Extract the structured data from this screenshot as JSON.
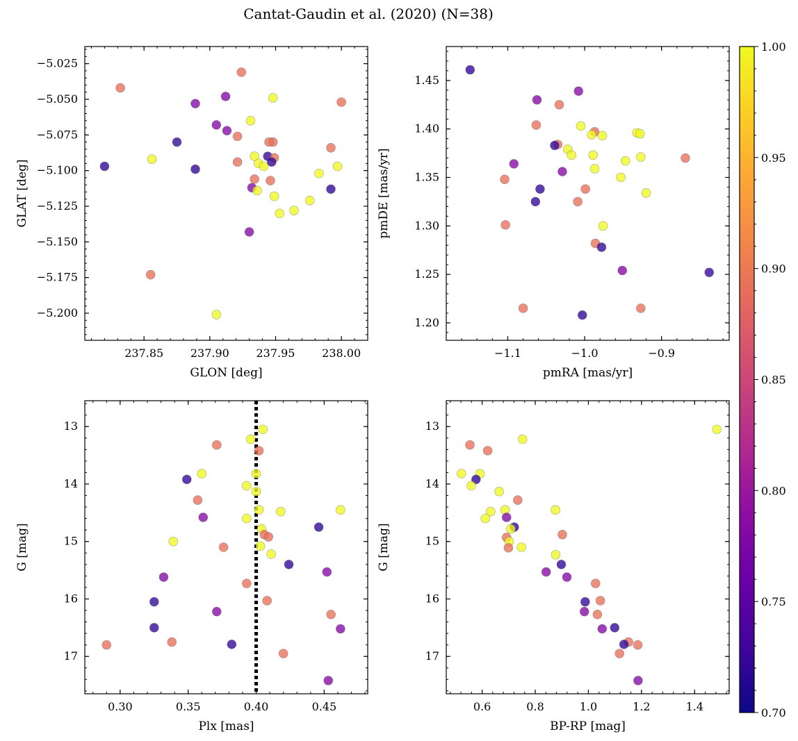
{
  "title": "Cantat-Gaudin et al. (2020) (N=38)",
  "colorbar": {
    "colormap": "plasma",
    "min": 0.7,
    "max": 1.0,
    "ticks": [
      "0.70",
      "0.75",
      "0.80",
      "0.85",
      "0.90",
      "0.95",
      "1.00"
    ]
  },
  "chart_data": [
    {
      "type": "scatter",
      "xlabel": "GLON [deg]",
      "ylabel": "GLAT [deg]",
      "xlim": [
        237.805,
        238.02
      ],
      "ylim": [
        -5.219,
        -5.013
      ],
      "xticks": [
        "237.85",
        "237.90",
        "237.95",
        "238.00"
      ],
      "yticks": [
        "−5.025",
        "−5.050",
        "−5.075",
        "−5.100",
        "−5.125",
        "−5.150",
        "−5.175",
        "−5.200"
      ],
      "points": [
        {
          "x": 237.924,
          "y": -5.031,
          "c": 0.89
        },
        {
          "x": 237.832,
          "y": -5.042,
          "c": 0.89
        },
        {
          "x": 237.912,
          "y": -5.048,
          "c": 0.78
        },
        {
          "x": 237.948,
          "y": -5.049,
          "c": 1.0
        },
        {
          "x": 238.0,
          "y": -5.052,
          "c": 0.89
        },
        {
          "x": 237.889,
          "y": -5.053,
          "c": 0.78
        },
        {
          "x": 237.931,
          "y": -5.065,
          "c": 1.0
        },
        {
          "x": 237.905,
          "y": -5.068,
          "c": 0.78
        },
        {
          "x": 237.913,
          "y": -5.072,
          "c": 0.78
        },
        {
          "x": 237.921,
          "y": -5.076,
          "c": 0.89
        },
        {
          "x": 237.875,
          "y": -5.08,
          "c": 0.72
        },
        {
          "x": 237.948,
          "y": -5.08,
          "c": 0.89
        },
        {
          "x": 237.945,
          "y": -5.08,
          "c": 0.89
        },
        {
          "x": 237.992,
          "y": -5.084,
          "c": 0.89
        },
        {
          "x": 237.944,
          "y": -5.09,
          "c": 0.72
        },
        {
          "x": 237.934,
          "y": -5.09,
          "c": 1.0
        },
        {
          "x": 237.949,
          "y": -5.091,
          "c": 0.89
        },
        {
          "x": 237.856,
          "y": -5.092,
          "c": 1.0
        },
        {
          "x": 237.921,
          "y": -5.094,
          "c": 0.89
        },
        {
          "x": 237.947,
          "y": -5.094,
          "c": 0.72
        },
        {
          "x": 237.937,
          "y": -5.095,
          "c": 1.0
        },
        {
          "x": 237.941,
          "y": -5.097,
          "c": 1.0
        },
        {
          "x": 237.997,
          "y": -5.097,
          "c": 1.0
        },
        {
          "x": 237.82,
          "y": -5.097,
          "c": 0.72
        },
        {
          "x": 237.889,
          "y": -5.099,
          "c": 0.72
        },
        {
          "x": 237.983,
          "y": -5.102,
          "c": 1.0
        },
        {
          "x": 237.934,
          "y": -5.106,
          "c": 0.89
        },
        {
          "x": 237.946,
          "y": -5.107,
          "c": 0.89
        },
        {
          "x": 237.932,
          "y": -5.112,
          "c": 0.78
        },
        {
          "x": 237.936,
          "y": -5.114,
          "c": 1.0
        },
        {
          "x": 237.992,
          "y": -5.113,
          "c": 0.72
        },
        {
          "x": 237.949,
          "y": -5.118,
          "c": 1.0
        },
        {
          "x": 237.976,
          "y": -5.121,
          "c": 1.0
        },
        {
          "x": 237.964,
          "y": -5.128,
          "c": 1.0
        },
        {
          "x": 237.953,
          "y": -5.13,
          "c": 1.0
        },
        {
          "x": 237.93,
          "y": -5.143,
          "c": 0.78
        },
        {
          "x": 237.855,
          "y": -5.173,
          "c": 0.89
        },
        {
          "x": 237.905,
          "y": -5.201,
          "c": 1.0
        }
      ]
    },
    {
      "type": "scatter",
      "xlabel": "pmRA [mas/yr]",
      "ylabel": "pmDE [mas/yr]",
      "xlim": [
        -1.18,
        -0.812
      ],
      "ylim": [
        1.182,
        1.485
      ],
      "xticks": [
        "−1.1",
        "−1.0",
        "−0.9"
      ],
      "yticks": [
        "1.20",
        "1.25",
        "1.30",
        "1.35",
        "1.40",
        "1.45"
      ],
      "points": [
        {
          "x": -1.149,
          "y": 1.461,
          "c": 0.72
        },
        {
          "x": -1.008,
          "y": 1.439,
          "c": 0.78
        },
        {
          "x": -1.062,
          "y": 1.43,
          "c": 0.78
        },
        {
          "x": -1.033,
          "y": 1.425,
          "c": 0.89
        },
        {
          "x": -1.063,
          "y": 1.404,
          "c": 0.89
        },
        {
          "x": -1.005,
          "y": 1.403,
          "c": 1.0
        },
        {
          "x": -0.987,
          "y": 1.397,
          "c": 0.89
        },
        {
          "x": -0.932,
          "y": 1.396,
          "c": 1.0
        },
        {
          "x": -0.928,
          "y": 1.395,
          "c": 1.0
        },
        {
          "x": -0.991,
          "y": 1.394,
          "c": 1.0
        },
        {
          "x": -0.977,
          "y": 1.393,
          "c": 1.0
        },
        {
          "x": -1.035,
          "y": 1.384,
          "c": 0.89
        },
        {
          "x": -1.039,
          "y": 1.383,
          "c": 0.72
        },
        {
          "x": -1.022,
          "y": 1.379,
          "c": 1.0
        },
        {
          "x": -1.017,
          "y": 1.373,
          "c": 1.0
        },
        {
          "x": -0.989,
          "y": 1.373,
          "c": 1.0
        },
        {
          "x": -0.927,
          "y": 1.371,
          "c": 1.0
        },
        {
          "x": -0.869,
          "y": 1.37,
          "c": 0.89
        },
        {
          "x": -0.947,
          "y": 1.367,
          "c": 1.0
        },
        {
          "x": -1.092,
          "y": 1.364,
          "c": 0.78
        },
        {
          "x": -0.987,
          "y": 1.359,
          "c": 1.0
        },
        {
          "x": -1.029,
          "y": 1.356,
          "c": 0.78
        },
        {
          "x": -0.953,
          "y": 1.35,
          "c": 1.0
        },
        {
          "x": -1.104,
          "y": 1.348,
          "c": 0.89
        },
        {
          "x": -1.058,
          "y": 1.338,
          "c": 0.72
        },
        {
          "x": -0.999,
          "y": 1.338,
          "c": 0.89
        },
        {
          "x": -0.92,
          "y": 1.334,
          "c": 1.0
        },
        {
          "x": -1.064,
          "y": 1.325,
          "c": 0.72
        },
        {
          "x": -1.009,
          "y": 1.325,
          "c": 0.89
        },
        {
          "x": -1.103,
          "y": 1.301,
          "c": 0.89
        },
        {
          "x": -0.976,
          "y": 1.3,
          "c": 1.0
        },
        {
          "x": -0.986,
          "y": 1.282,
          "c": 0.89
        },
        {
          "x": -0.978,
          "y": 1.278,
          "c": 0.72
        },
        {
          "x": -0.951,
          "y": 1.254,
          "c": 0.78
        },
        {
          "x": -0.838,
          "y": 1.252,
          "c": 0.72
        },
        {
          "x": -1.08,
          "y": 1.215,
          "c": 0.89
        },
        {
          "x": -0.927,
          "y": 1.215,
          "c": 0.89
        },
        {
          "x": -1.003,
          "y": 1.208,
          "c": 0.72
        }
      ]
    },
    {
      "type": "scatter",
      "xlabel": "Plx [mas]",
      "ylabel": "G [mag]",
      "xlim": [
        0.274,
        0.482
      ],
      "ylim": [
        17.65,
        12.55
      ],
      "invert_y": true,
      "vline": {
        "x": 0.4,
        "style": "dotted",
        "color": "#000000"
      },
      "xticks": [
        "0.30",
        "0.35",
        "0.40",
        "0.45"
      ],
      "yticks": [
        "13",
        "14",
        "15",
        "16",
        "17"
      ],
      "points": [
        {
          "x": 0.405,
          "y": 13.05,
          "c": 1.0
        },
        {
          "x": 0.396,
          "y": 13.22,
          "c": 1.0
        },
        {
          "x": 0.371,
          "y": 13.32,
          "c": 0.89
        },
        {
          "x": 0.402,
          "y": 13.42,
          "c": 0.89
        },
        {
          "x": 0.36,
          "y": 13.82,
          "c": 1.0
        },
        {
          "x": 0.4,
          "y": 13.82,
          "c": 1.0
        },
        {
          "x": 0.349,
          "y": 13.92,
          "c": 0.72
        },
        {
          "x": 0.393,
          "y": 14.03,
          "c": 1.0
        },
        {
          "x": 0.4,
          "y": 14.13,
          "c": 1.0
        },
        {
          "x": 0.357,
          "y": 14.28,
          "c": 0.89
        },
        {
          "x": 0.402,
          "y": 14.45,
          "c": 1.0
        },
        {
          "x": 0.462,
          "y": 14.45,
          "c": 1.0
        },
        {
          "x": 0.418,
          "y": 14.48,
          "c": 1.0
        },
        {
          "x": 0.361,
          "y": 14.58,
          "c": 0.78
        },
        {
          "x": 0.393,
          "y": 14.6,
          "c": 1.0
        },
        {
          "x": 0.446,
          "y": 14.75,
          "c": 0.72
        },
        {
          "x": 0.404,
          "y": 14.78,
          "c": 1.0
        },
        {
          "x": 0.406,
          "y": 14.88,
          "c": 0.89
        },
        {
          "x": 0.409,
          "y": 14.92,
          "c": 0.89
        },
        {
          "x": 0.339,
          "y": 15.0,
          "c": 1.0
        },
        {
          "x": 0.403,
          "y": 15.08,
          "c": 1.0
        },
        {
          "x": 0.376,
          "y": 15.1,
          "c": 0.89
        },
        {
          "x": 0.411,
          "y": 15.22,
          "c": 1.0
        },
        {
          "x": 0.424,
          "y": 15.4,
          "c": 0.72
        },
        {
          "x": 0.452,
          "y": 15.53,
          "c": 0.78
        },
        {
          "x": 0.332,
          "y": 15.62,
          "c": 0.78
        },
        {
          "x": 0.393,
          "y": 15.73,
          "c": 0.89
        },
        {
          "x": 0.408,
          "y": 16.03,
          "c": 0.89
        },
        {
          "x": 0.325,
          "y": 16.05,
          "c": 0.72
        },
        {
          "x": 0.371,
          "y": 16.22,
          "c": 0.78
        },
        {
          "x": 0.455,
          "y": 16.27,
          "c": 0.89
        },
        {
          "x": 0.325,
          "y": 16.5,
          "c": 0.72
        },
        {
          "x": 0.462,
          "y": 16.52,
          "c": 0.78
        },
        {
          "x": 0.338,
          "y": 16.75,
          "c": 0.89
        },
        {
          "x": 0.382,
          "y": 16.79,
          "c": 0.72
        },
        {
          "x": 0.29,
          "y": 16.8,
          "c": 0.89
        },
        {
          "x": 0.42,
          "y": 16.95,
          "c": 0.89
        },
        {
          "x": 0.453,
          "y": 17.42,
          "c": 0.78
        }
      ]
    },
    {
      "type": "scatter",
      "xlabel": "BP-RP [mag]",
      "ylabel": "G [mag]",
      "xlim": [
        0.465,
        1.53
      ],
      "ylim": [
        17.65,
        12.55
      ],
      "invert_y": true,
      "xticks": [
        "0.6",
        "0.8",
        "1.0",
        "1.2",
        "1.4"
      ],
      "yticks": [
        "13",
        "14",
        "15",
        "16",
        "17"
      ],
      "points": [
        {
          "x": 1.483,
          "y": 13.05,
          "c": 1.0
        },
        {
          "x": 0.752,
          "y": 13.22,
          "c": 1.0
        },
        {
          "x": 0.554,
          "y": 13.32,
          "c": 0.89
        },
        {
          "x": 0.621,
          "y": 13.42,
          "c": 0.89
        },
        {
          "x": 0.522,
          "y": 13.82,
          "c": 1.0
        },
        {
          "x": 0.592,
          "y": 13.82,
          "c": 1.0
        },
        {
          "x": 0.577,
          "y": 13.92,
          "c": 0.72
        },
        {
          "x": 0.559,
          "y": 14.03,
          "c": 1.0
        },
        {
          "x": 0.664,
          "y": 14.13,
          "c": 1.0
        },
        {
          "x": 0.734,
          "y": 14.28,
          "c": 0.89
        },
        {
          "x": 0.686,
          "y": 14.45,
          "c": 1.0
        },
        {
          "x": 0.876,
          "y": 14.45,
          "c": 1.0
        },
        {
          "x": 0.632,
          "y": 14.48,
          "c": 1.0
        },
        {
          "x": 0.692,
          "y": 14.58,
          "c": 0.78
        },
        {
          "x": 0.612,
          "y": 14.6,
          "c": 1.0
        },
        {
          "x": 0.721,
          "y": 14.75,
          "c": 0.72
        },
        {
          "x": 0.708,
          "y": 14.78,
          "c": 1.0
        },
        {
          "x": 0.902,
          "y": 14.88,
          "c": 0.89
        },
        {
          "x": 0.692,
          "y": 14.93,
          "c": 0.89
        },
        {
          "x": 0.702,
          "y": 15.0,
          "c": 1.0
        },
        {
          "x": 0.748,
          "y": 15.1,
          "c": 1.0
        },
        {
          "x": 0.699,
          "y": 15.11,
          "c": 0.89
        },
        {
          "x": 0.877,
          "y": 15.23,
          "c": 1.0
        },
        {
          "x": 0.898,
          "y": 15.4,
          "c": 0.72
        },
        {
          "x": 0.841,
          "y": 15.53,
          "c": 0.78
        },
        {
          "x": 0.919,
          "y": 15.62,
          "c": 0.78
        },
        {
          "x": 1.027,
          "y": 15.73,
          "c": 0.89
        },
        {
          "x": 1.045,
          "y": 16.03,
          "c": 0.89
        },
        {
          "x": 0.988,
          "y": 16.05,
          "c": 0.72
        },
        {
          "x": 0.985,
          "y": 16.22,
          "c": 0.78
        },
        {
          "x": 1.034,
          "y": 16.27,
          "c": 0.89
        },
        {
          "x": 1.099,
          "y": 16.5,
          "c": 0.72
        },
        {
          "x": 1.052,
          "y": 16.52,
          "c": 0.78
        },
        {
          "x": 1.151,
          "y": 16.75,
          "c": 0.89
        },
        {
          "x": 1.134,
          "y": 16.79,
          "c": 0.72
        },
        {
          "x": 1.186,
          "y": 16.8,
          "c": 0.89
        },
        {
          "x": 1.117,
          "y": 16.95,
          "c": 0.89
        },
        {
          "x": 1.187,
          "y": 17.42,
          "c": 0.78
        }
      ]
    }
  ]
}
